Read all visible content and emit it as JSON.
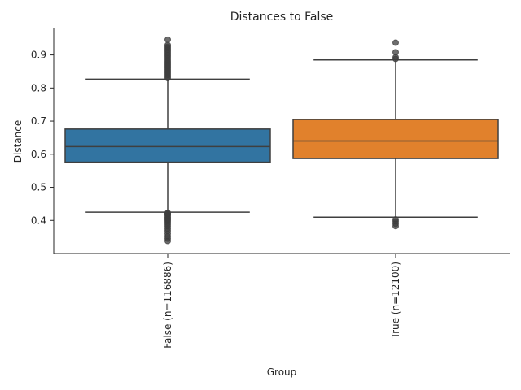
{
  "chart_data": {
    "type": "box",
    "title": "Distances to False",
    "xlabel": "Group",
    "ylabel": "Distance",
    "categories": [
      "False (n=116886)",
      "True (n=12100)"
    ],
    "ylim": [
      0.3,
      0.98
    ],
    "yticks": [
      0.4,
      0.5,
      0.6,
      0.7,
      0.8,
      0.9
    ],
    "grid": false,
    "legend": "none",
    "boxes": [
      {
        "name": "False (n=116886)",
        "color": "#3274a1",
        "q1": 0.576,
        "median": 0.623,
        "q3": 0.676,
        "whisker_low": 0.425,
        "whisker_high": 0.827,
        "outliers": [
          0.338,
          0.345,
          0.352,
          0.36,
          0.368,
          0.375,
          0.382,
          0.388,
          0.393,
          0.398,
          0.402,
          0.406,
          0.41,
          0.414,
          0.418,
          0.421,
          0.423,
          0.83,
          0.835,
          0.84,
          0.845,
          0.85,
          0.855,
          0.86,
          0.865,
          0.87,
          0.875,
          0.88,
          0.885,
          0.89,
          0.895,
          0.9,
          0.905,
          0.91,
          0.915,
          0.92,
          0.925,
          0.93,
          0.946
        ]
      },
      {
        "name": "True (n=12100)",
        "color": "#e1812c",
        "q1": 0.587,
        "median": 0.64,
        "q3": 0.705,
        "whisker_low": 0.41,
        "whisker_high": 0.885,
        "outliers": [
          0.383,
          0.39,
          0.397,
          0.403,
          0.888,
          0.893,
          0.908,
          0.937
        ]
      }
    ]
  }
}
